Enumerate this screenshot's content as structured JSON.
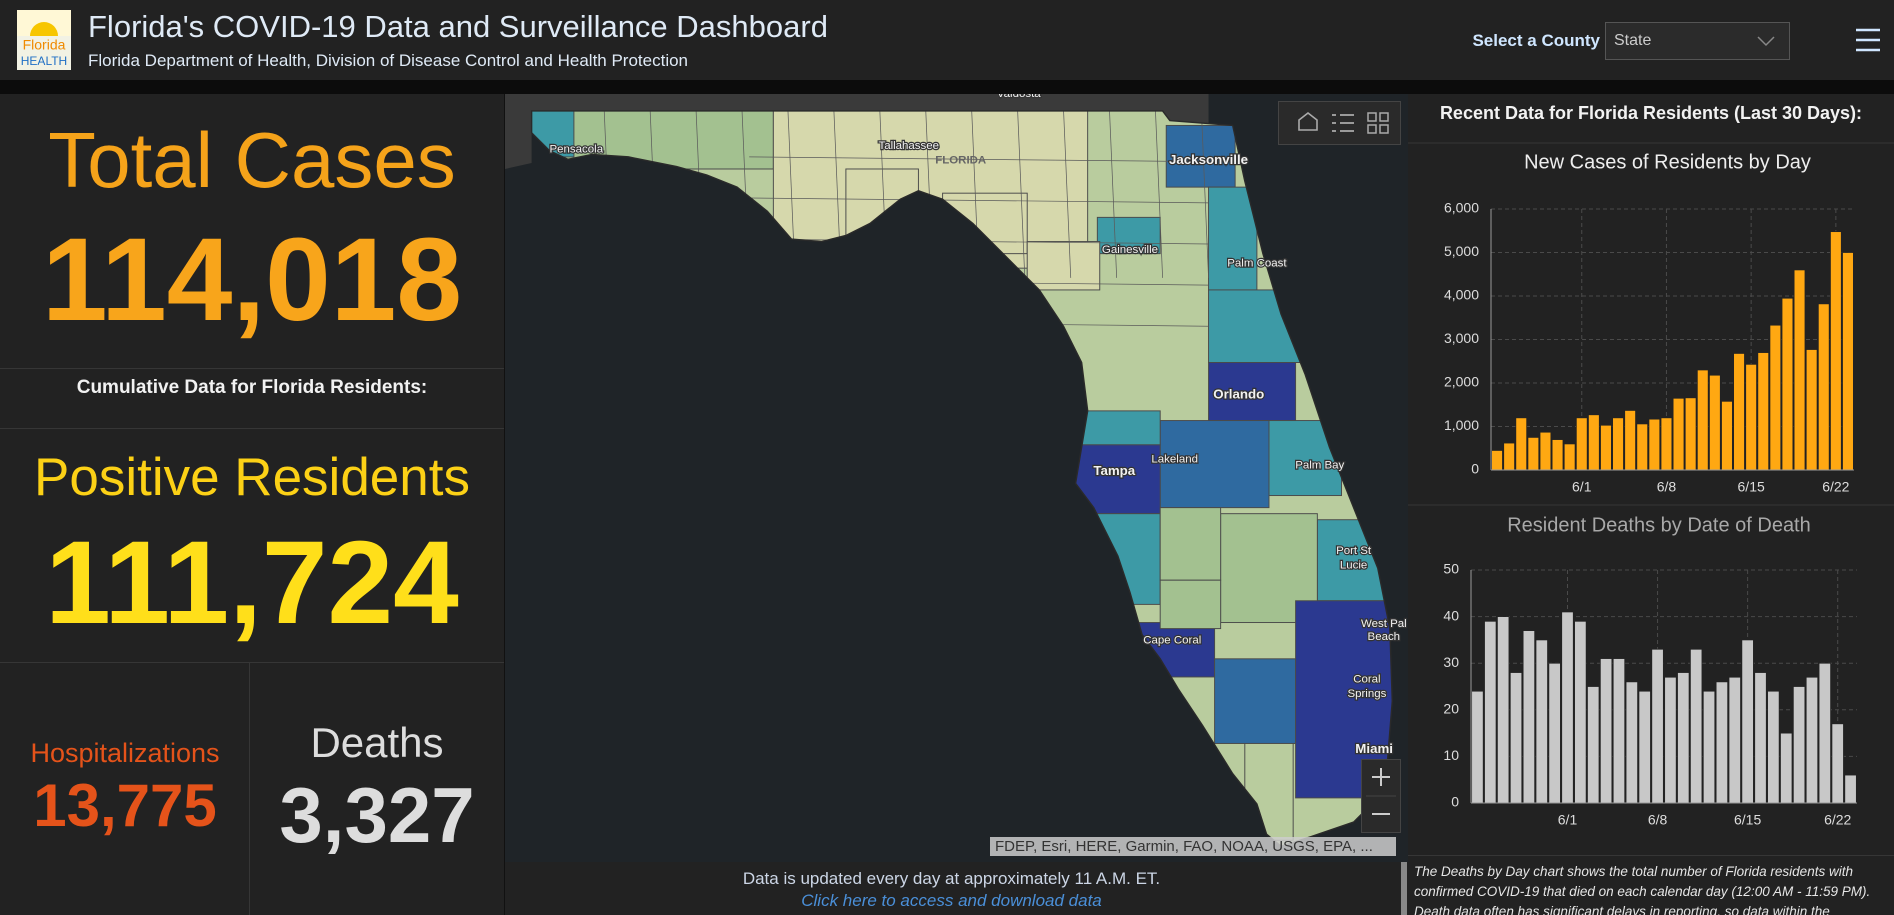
{
  "header": {
    "title": "Florida's COVID-19 Data and Surveillance Dashboard",
    "subtitle": "Florida Department of Health, Division of Disease Control and Health Protection",
    "logo_lines": [
      "Florida",
      "HEALTH"
    ],
    "select_label": "Select a County",
    "select_value": "State"
  },
  "summary": {
    "total_cases_label": "Total Cases",
    "total_cases": "114,018",
    "cumulative_heading": "Cumulative Data for Florida Residents:",
    "positive_residents_label": "Positive Residents",
    "positive_residents": "111,724",
    "hospitalizations_label": "Hospitalizations",
    "hospitalizations": "13,775",
    "deaths_label": "Deaths",
    "deaths": "3,327"
  },
  "map": {
    "labels": [
      "Valdosta",
      "Pensacola",
      "Tallahassee",
      "FLORIDA",
      "Jacksonville",
      "Gainesville",
      "Palm Coast",
      "Orlando",
      "Lakeland",
      "Tampa",
      "Palm Bay",
      "Port St",
      "Lucie",
      "West Pal",
      "Beach",
      "Coral",
      "Springs",
      "Cape Coral",
      "Miami"
    ],
    "attribution": "FDEP, Esri, HERE, Garmin, FAO, NOAA, USGS, EPA, ...",
    "update_note": "Data is updated every day at approximately 11 A.M. ET.",
    "download_link": "Click here to access and download data"
  },
  "recent_heading": "Recent Data for Florida Residents (Last 30 Days):",
  "chart_data": [
    {
      "type": "bar",
      "title": "New Cases of Residents by Day",
      "categories": [
        null,
        null,
        null,
        null,
        null,
        null,
        null,
        "6/1",
        null,
        null,
        null,
        null,
        null,
        null,
        "6/8",
        null,
        null,
        null,
        null,
        null,
        null,
        "6/15",
        null,
        null,
        null,
        null,
        null,
        null,
        "6/22",
        null
      ],
      "values": [
        450,
        620,
        1200,
        750,
        870,
        700,
        600,
        1200,
        1270,
        1030,
        1200,
        1370,
        1060,
        1170,
        1200,
        1650,
        1660,
        2300,
        2180,
        1580,
        2680,
        2430,
        2700,
        3330,
        3950,
        4600,
        2770,
        3820,
        5480,
        5000
      ],
      "color": "#ffa812",
      "ylim": [
        0,
        6000
      ],
      "yticks": [
        0,
        {
          "value": 1000,
          "label": "1,000"
        },
        {
          "value": 2000,
          "label": "2,000"
        },
        {
          "value": 3000,
          "label": "3,000"
        },
        {
          "value": 4000,
          "label": "4,000"
        },
        {
          "value": 5000,
          "label": "5,000"
        },
        {
          "value": 6000,
          "label": "6,000"
        }
      ],
      "grid": true
    },
    {
      "type": "bar",
      "title": "Resident Deaths by Date of Death",
      "categories": [
        null,
        null,
        null,
        null,
        null,
        null,
        null,
        "6/1",
        null,
        null,
        null,
        null,
        null,
        null,
        "6/8",
        null,
        null,
        null,
        null,
        null,
        null,
        "6/15",
        null,
        null,
        null,
        null,
        null,
        null,
        "6/22",
        null
      ],
      "values": [
        24,
        39,
        40,
        28,
        37,
        35,
        30,
        41,
        39,
        25,
        31,
        31,
        26,
        24,
        33,
        27,
        28,
        33,
        24,
        26,
        27,
        35,
        28,
        24,
        15,
        25,
        27,
        30,
        17,
        6
      ],
      "color": "#c8c8c8",
      "ylim": [
        0,
        50
      ],
      "yticks": [
        0,
        10,
        20,
        30,
        40,
        50
      ],
      "grid": true
    }
  ],
  "chart_note": "The Deaths by Day chart shows the total number of Florida residents with confirmed COVID-19 that died on each calendar day (12:00 AM - 11:59 PM). Death data often has significant delays in reporting, so data within the"
}
